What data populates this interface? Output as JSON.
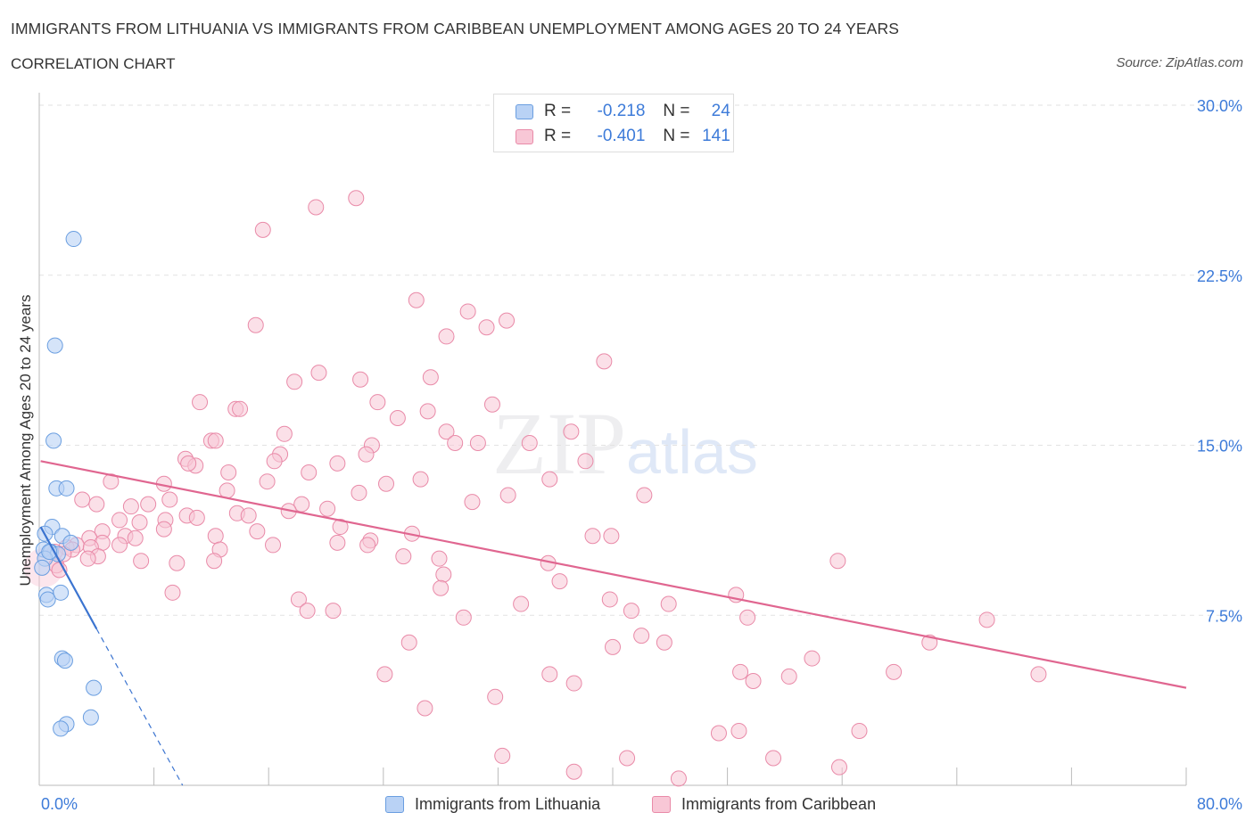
{
  "title": "IMMIGRANTS FROM LITHUANIA VS IMMIGRANTS FROM CARIBBEAN UNEMPLOYMENT AMONG AGES 20 TO 24 YEARS",
  "subtitle": "CORRELATION CHART",
  "source": "Source: ZipAtlas.com",
  "watermark": {
    "zip": "ZIP",
    "atlas": "atlas"
  },
  "legend": {
    "r_label": "R =",
    "n_label": "N =",
    "rows": [
      {
        "r": "-0.218",
        "n": "24"
      },
      {
        "r": "-0.401",
        "n": "141"
      }
    ]
  },
  "colors": {
    "lithuania_fill": "#b9d2f5",
    "lithuania_stroke": "#6a9ee0",
    "lithuania_line": "#3b74d0",
    "caribbean_fill": "#f8c7d6",
    "caribbean_stroke": "#e98aa8",
    "caribbean_line": "#e06690",
    "tick": "#3d7bd9",
    "grid": "#e2e2e2"
  },
  "chart_data": {
    "type": "scatter",
    "xlabel": "",
    "ylabel": "Unemployment Among Ages 20 to 24 years",
    "xlim": [
      0,
      80
    ],
    "ylim": [
      0,
      30
    ],
    "x_tick_labels": {
      "min": "0.0%",
      "max": "80.0%"
    },
    "y_ticks": [
      {
        "value": 7.5,
        "label": "7.5%"
      },
      {
        "value": 15,
        "label": "15.0%"
      },
      {
        "value": 22.5,
        "label": "22.5%"
      },
      {
        "value": 30,
        "label": "30.0%"
      }
    ],
    "series": [
      {
        "name": "Immigrants from Lithuania",
        "points": [
          [
            2.4,
            24.1
          ],
          [
            1.1,
            19.4
          ],
          [
            1.0,
            15.2
          ],
          [
            1.2,
            13.1
          ],
          [
            1.9,
            13.1
          ],
          [
            0.9,
            11.4
          ],
          [
            0.4,
            11.1
          ],
          [
            1.6,
            11.0
          ],
          [
            2.2,
            10.7
          ],
          [
            0.3,
            10.4
          ],
          [
            0.8,
            10.3
          ],
          [
            1.3,
            10.2
          ],
          [
            0.4,
            10.0
          ],
          [
            0.2,
            9.6
          ],
          [
            0.5,
            8.4
          ],
          [
            1.5,
            8.5
          ],
          [
            0.6,
            8.2
          ],
          [
            1.6,
            5.6
          ],
          [
            1.8,
            5.5
          ],
          [
            3.8,
            4.3
          ],
          [
            3.6,
            3.0
          ],
          [
            1.9,
            2.7
          ],
          [
            1.5,
            2.5
          ],
          [
            0.7,
            10.3
          ]
        ],
        "trend": {
          "x0": 0.1,
          "y0": 11.4,
          "x1": 4.0,
          "y1": 6.9,
          "dash_x1": 10.0,
          "dash_y1": 0.0
        }
      },
      {
        "name": "Immigrants from Caribbean",
        "points": [
          [
            22.1,
            25.9
          ],
          [
            19.3,
            25.5
          ],
          [
            15.6,
            24.5
          ],
          [
            26.3,
            21.4
          ],
          [
            29.9,
            20.9
          ],
          [
            32.6,
            20.5
          ],
          [
            15.1,
            20.3
          ],
          [
            31.2,
            20.2
          ],
          [
            28.4,
            19.8
          ],
          [
            39.4,
            18.7
          ],
          [
            19.5,
            18.2
          ],
          [
            22.4,
            17.9
          ],
          [
            17.8,
            17.8
          ],
          [
            27.3,
            18.0
          ],
          [
            11.2,
            16.9
          ],
          [
            13.7,
            16.6
          ],
          [
            14.0,
            16.6
          ],
          [
            23.6,
            16.9
          ],
          [
            31.6,
            16.8
          ],
          [
            27.1,
            16.5
          ],
          [
            25.0,
            16.2
          ],
          [
            17.1,
            15.5
          ],
          [
            28.4,
            15.6
          ],
          [
            37.1,
            15.6
          ],
          [
            12.0,
            15.2
          ],
          [
            12.3,
            15.2
          ],
          [
            29.0,
            15.1
          ],
          [
            30.6,
            15.1
          ],
          [
            34.2,
            15.1
          ],
          [
            23.2,
            15.0
          ],
          [
            10.2,
            14.4
          ],
          [
            16.8,
            14.6
          ],
          [
            22.8,
            14.6
          ],
          [
            16.4,
            14.3
          ],
          [
            38.1,
            14.3
          ],
          [
            10.9,
            14.1
          ],
          [
            20.8,
            14.2
          ],
          [
            13.2,
            13.8
          ],
          [
            18.8,
            13.8
          ],
          [
            5.0,
            13.4
          ],
          [
            8.7,
            13.3
          ],
          [
            15.9,
            13.4
          ],
          [
            24.2,
            13.3
          ],
          [
            26.6,
            13.5
          ],
          [
            35.6,
            13.5
          ],
          [
            13.1,
            13.0
          ],
          [
            22.3,
            12.9
          ],
          [
            32.7,
            12.8
          ],
          [
            42.2,
            12.8
          ],
          [
            3.0,
            12.6
          ],
          [
            9.1,
            12.6
          ],
          [
            4.0,
            12.4
          ],
          [
            6.4,
            12.3
          ],
          [
            7.6,
            12.4
          ],
          [
            18.3,
            12.4
          ],
          [
            20.1,
            12.2
          ],
          [
            30.2,
            12.5
          ],
          [
            17.4,
            12.1
          ],
          [
            13.8,
            12.0
          ],
          [
            14.6,
            11.9
          ],
          [
            10.3,
            11.9
          ],
          [
            11.0,
            11.8
          ],
          [
            5.6,
            11.7
          ],
          [
            7.0,
            11.6
          ],
          [
            8.8,
            11.7
          ],
          [
            21.0,
            11.4
          ],
          [
            8.7,
            11.3
          ],
          [
            4.4,
            11.2
          ],
          [
            15.2,
            11.2
          ],
          [
            6.0,
            11.0
          ],
          [
            3.5,
            10.9
          ],
          [
            12.3,
            11.0
          ],
          [
            23.1,
            10.8
          ],
          [
            38.6,
            11.0
          ],
          [
            39.9,
            11.0
          ],
          [
            6.7,
            10.9
          ],
          [
            4.4,
            10.7
          ],
          [
            5.6,
            10.6
          ],
          [
            2.6,
            10.6
          ],
          [
            3.6,
            10.5
          ],
          [
            16.3,
            10.6
          ],
          [
            20.8,
            10.7
          ],
          [
            22.9,
            10.6
          ],
          [
            1.9,
            10.5
          ],
          [
            2.3,
            10.4
          ],
          [
            12.6,
            10.4
          ],
          [
            1.1,
            10.3
          ],
          [
            1.7,
            10.2
          ],
          [
            4.1,
            10.1
          ],
          [
            25.4,
            10.1
          ],
          [
            27.9,
            10.0
          ],
          [
            3.4,
            10.0
          ],
          [
            7.1,
            9.9
          ],
          [
            9.6,
            9.8
          ],
          [
            12.2,
            9.9
          ],
          [
            35.5,
            9.8
          ],
          [
            55.7,
            9.9
          ],
          [
            1.2,
            9.7
          ],
          [
            1.4,
            9.5
          ],
          [
            28.2,
            9.3
          ],
          [
            36.3,
            9.0
          ],
          [
            9.3,
            8.5
          ],
          [
            48.6,
            8.4
          ],
          [
            18.1,
            8.2
          ],
          [
            33.6,
            8.0
          ],
          [
            39.8,
            8.2
          ],
          [
            43.9,
            8.0
          ],
          [
            18.7,
            7.7
          ],
          [
            20.5,
            7.7
          ],
          [
            41.3,
            7.7
          ],
          [
            29.6,
            7.4
          ],
          [
            49.4,
            7.4
          ],
          [
            66.1,
            7.3
          ],
          [
            42.0,
            6.6
          ],
          [
            25.8,
            6.3
          ],
          [
            40.0,
            6.1
          ],
          [
            43.6,
            6.3
          ],
          [
            62.1,
            6.3
          ],
          [
            53.9,
            5.6
          ],
          [
            24.1,
            4.9
          ],
          [
            35.6,
            4.9
          ],
          [
            48.9,
            5.0
          ],
          [
            59.6,
            5.0
          ],
          [
            69.7,
            4.9
          ],
          [
            52.3,
            4.8
          ],
          [
            37.3,
            4.5
          ],
          [
            49.8,
            4.6
          ],
          [
            31.8,
            3.9
          ],
          [
            26.9,
            3.4
          ],
          [
            47.4,
            2.3
          ],
          [
            48.8,
            2.4
          ],
          [
            57.2,
            2.4
          ],
          [
            32.3,
            1.3
          ],
          [
            41.0,
            1.2
          ],
          [
            51.2,
            1.2
          ],
          [
            37.3,
            0.6
          ],
          [
            55.8,
            0.8
          ],
          [
            44.6,
            0.3
          ],
          [
            28.0,
            8.7
          ],
          [
            10.4,
            14.2
          ],
          [
            26.0,
            11.1
          ]
        ],
        "trend": {
          "x0": 0.1,
          "y0": 14.3,
          "x1": 80.0,
          "y1": 4.3
        }
      }
    ]
  },
  "bottom_legend": [
    "Immigrants from Lithuania",
    "Immigrants from Caribbean"
  ]
}
